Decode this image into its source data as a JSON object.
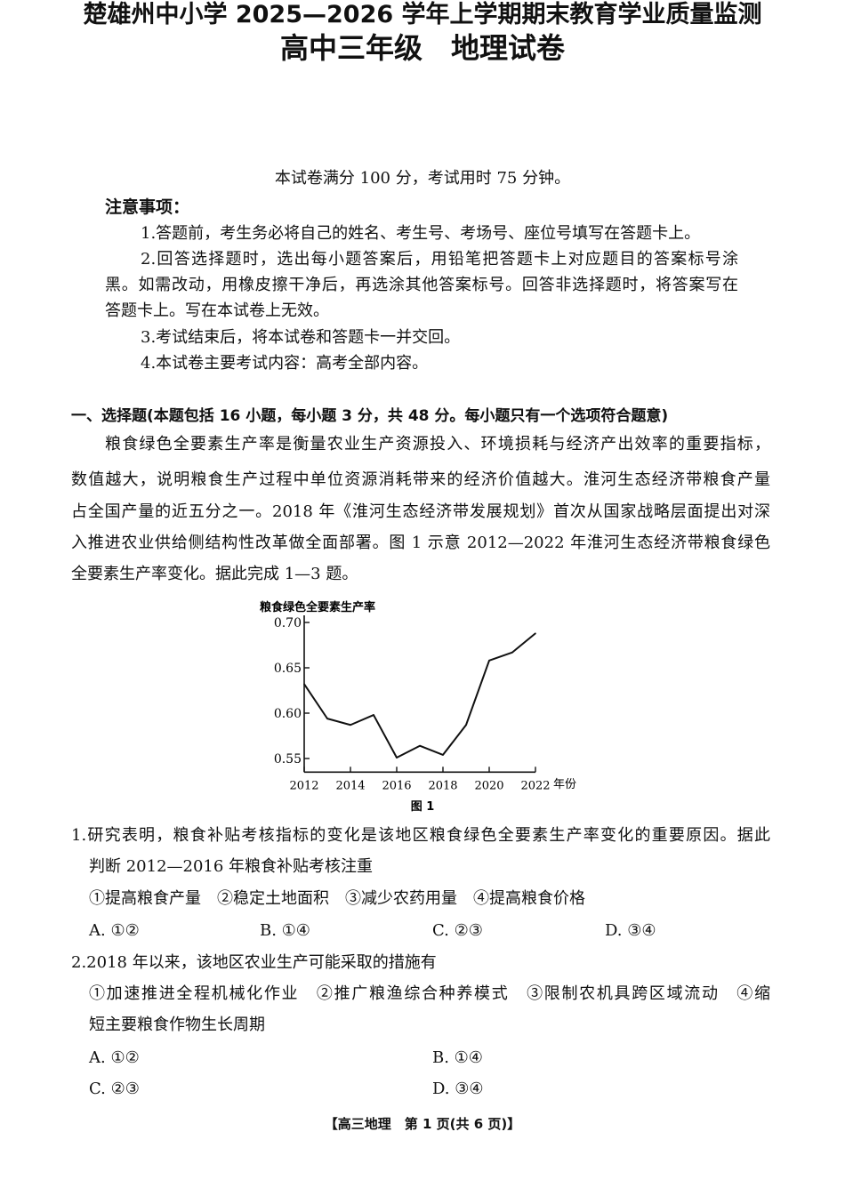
{
  "header": {
    "title": "楚雄州中小学 2025—2026 学年上学期期末教育学业质量监测",
    "subtitle": "高中三年级　地理试卷",
    "info": "本试卷满分 100 分，考试用时 75 分钟。"
  },
  "notice": {
    "heading": "注意事项：",
    "lines": [
      "1.答题前，考生务必将自己的姓名、考生号、考场号、座位号填写在答题卡上。",
      "2.回答选择题时，选出每小题答案后，用铅笔把答题卡上对应题目的答案标号涂",
      "黑。如需改动，用橡皮擦干净后，再选涂其他答案标号。回答非选择题时，将答案写在",
      "答题卡上。写在本试卷上无效。",
      "3.考试结束后，将本试卷和答题卡一并交回。",
      "4.本试卷主要考试内容：高考全部内容。"
    ]
  },
  "section": {
    "heading": "一、选择题(本题包括 16 小题，每小题 3 分，共 48 分。每小题只有一个选项符合题意)",
    "passage": [
      "粮食绿色全要素生产率是衡量农业生产资源投入、环境损耗与经济产出效率的重要指标，",
      "数值越大，说明粮食生产过程中单位资源消耗带来的经济价值越大。淮河生态经济带粮食产量",
      "占全国产量的近五分之一。2018 年《淮河生态经济带发展规划》首次从国家战略层面提出对深",
      "入推进农业供给侧结构性改革做全面部署。图 1 示意 2012—2022 年淮河生态经济带粮食绿色",
      "全要素生产率变化。据此完成 1—3 题。"
    ]
  },
  "chart_data": {
    "type": "line",
    "title": "",
    "caption": "图 1",
    "ylabel": "粮食绿色全要素生产率",
    "xlabel": "年份",
    "x": [
      2012,
      2013,
      2014,
      2015,
      2016,
      2017,
      2018,
      2019,
      2020,
      2021,
      2022
    ],
    "values": [
      0.632,
      0.594,
      0.587,
      0.598,
      0.551,
      0.564,
      0.554,
      0.587,
      0.658,
      0.667,
      0.688
    ],
    "x_ticks": [
      "2012",
      "2014",
      "2016",
      "2018",
      "2020",
      "2022"
    ],
    "y_ticks": [
      "0.55",
      "0.60",
      "0.65",
      "0.70"
    ],
    "ylim": [
      0.535,
      0.7
    ],
    "xlim": [
      2012,
      2022
    ],
    "grid": false
  },
  "questions": [
    {
      "stem": [
        "1.研究表明，粮食补贴考核指标的变化是该地区粮食绿色全要素生产率变化的重要原因。据此",
        "判断 2012—2016 年粮食补贴考核注重"
      ],
      "items": "①提高粮食产量　②稳定土地面积　③减少农药用量　④提高粮食价格",
      "options": [
        "A. ①②",
        "B. ①④",
        "C. ②③",
        "D. ③④"
      ]
    },
    {
      "stem": [
        "2.2018 年以来，该地区农业生产可能采取的措施有"
      ],
      "items_lines": [
        "①加速推进全程机械化作业　②推广粮渔综合种养模式　③限制农机具跨区域流动　④缩",
        "短主要粮食作物生长周期"
      ],
      "options": [
        "A. ①②",
        "B. ①④",
        "C. ②③",
        "D. ③④"
      ]
    }
  ],
  "footer": "【高三地理　第 1 页(共 6 页)】"
}
